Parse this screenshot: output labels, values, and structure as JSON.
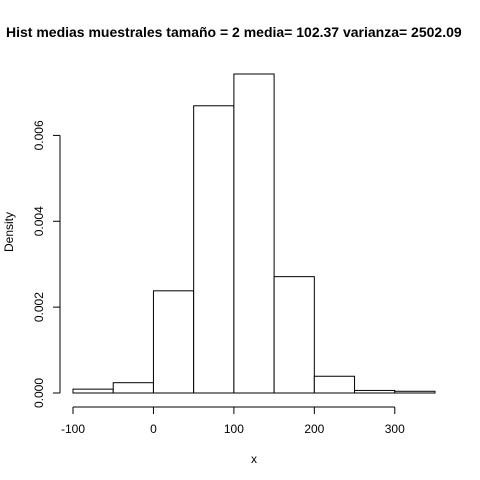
{
  "chart_data": {
    "type": "bar",
    "title": "Hist medias muestrales  tamaño =  2 media= 102.37 varianza= 2502.09",
    "xlabel": "x",
    "ylabel": "Density",
    "bins": [
      {
        "from": -100,
        "to": -50,
        "density": 9e-05
      },
      {
        "from": -50,
        "to": 0,
        "density": 0.00024
      },
      {
        "from": 0,
        "to": 50,
        "density": 0.00238
      },
      {
        "from": 50,
        "to": 100,
        "density": 0.00669
      },
      {
        "from": 100,
        "to": 150,
        "density": 0.00743
      },
      {
        "from": 150,
        "to": 200,
        "density": 0.00271
      },
      {
        "from": 200,
        "to": 250,
        "density": 0.00039
      },
      {
        "from": 250,
        "to": 300,
        "density": 6e-05
      },
      {
        "from": 300,
        "to": 350,
        "density": 4e-05
      }
    ],
    "xticks": [
      -100,
      0,
      100,
      200,
      300
    ],
    "xtick_labels": [
      "-100",
      "0",
      "100",
      "200",
      "300"
    ],
    "yticks": [
      0,
      0.002,
      0.004,
      0.006
    ],
    "ytick_labels": [
      "0.000",
      "0.002",
      "0.004",
      "0.006"
    ],
    "xlim": [
      -100,
      350
    ],
    "ylim": [
      0,
      0.0075
    ],
    "grid": false,
    "bar_fill": "#ffffff",
    "bar_stroke": "#000000"
  }
}
